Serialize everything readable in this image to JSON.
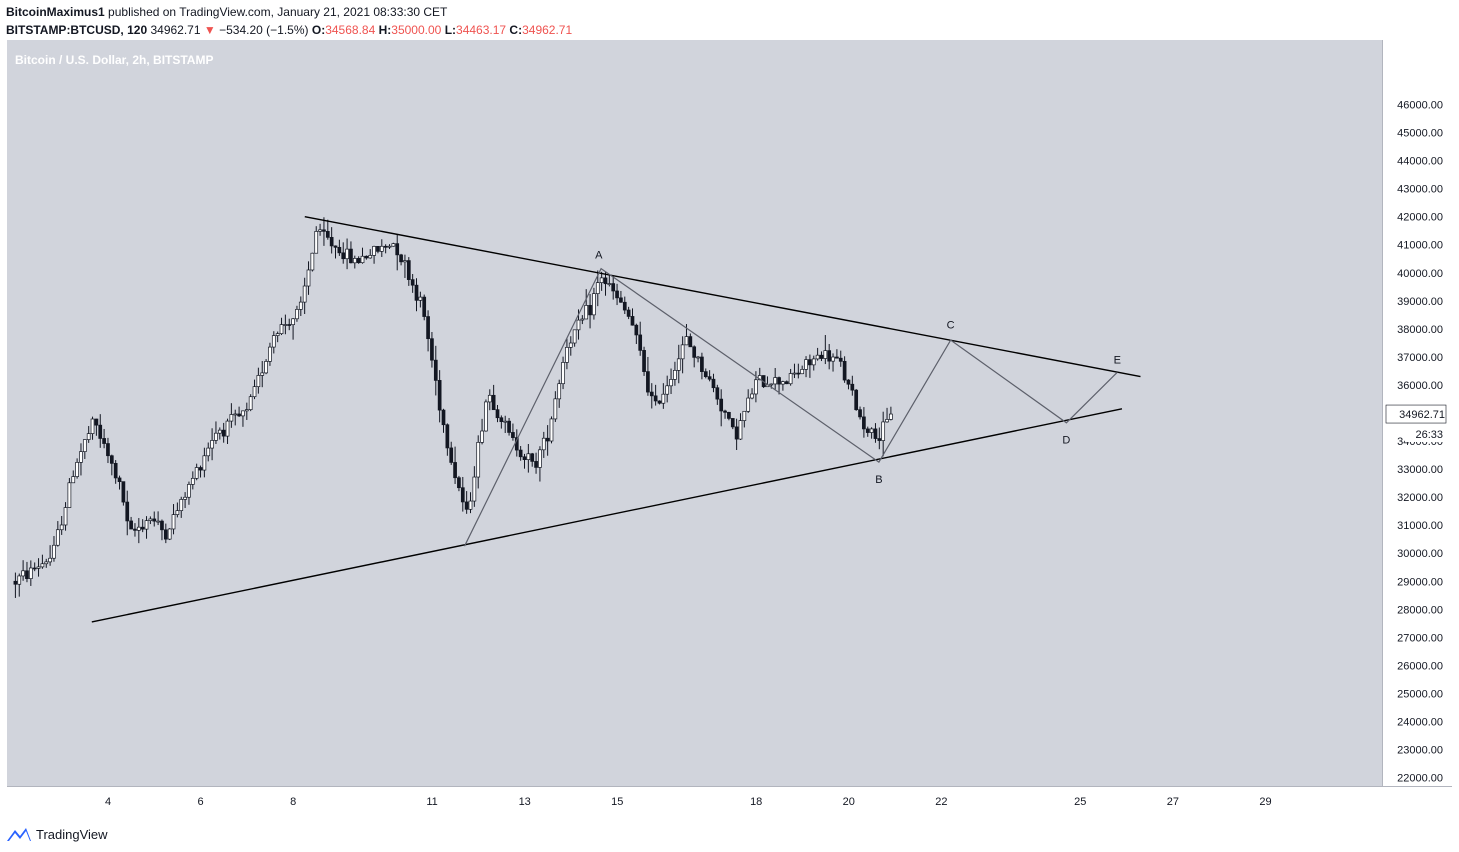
{
  "header": {
    "author": "BitcoinMaximus1",
    "published": "published on TradingView.com, January 21, 2021 08:33:30 CET"
  },
  "quote": {
    "symbol": "BITSTAMP:BTCUSD, 120",
    "last": "34962.71",
    "change": "−534.20 (−1.5%)",
    "o_label": "O:",
    "open": "34568.84",
    "h_label": "H:",
    "high": "35000.00",
    "l_label": "L:",
    "low": "34463.17",
    "c_label": "C:",
    "close": "34962.71"
  },
  "footer": {
    "brand": "TradingView"
  },
  "colors": {
    "plot_bg": "#d1d4dc",
    "axis_bg": "#ffffff",
    "up_candle": "#ffffff",
    "down_candle": "#131722",
    "line": "#000000",
    "wave": "#5d606b",
    "price_tag": "#ffffff",
    "red": "#ef5350"
  },
  "chart_data": {
    "type": "candlestick",
    "title": "Bitcoin / U.S. Dollar, 2h, BITSTAMP",
    "currency_label": "USD",
    "ylim": [
      21700,
      48300
    ],
    "y_ticks": [
      "46000.00",
      "45000.00",
      "44000.00",
      "43000.00",
      "42000.00",
      "41000.00",
      "40000.00",
      "39000.00",
      "38000.00",
      "37000.00",
      "36000.00",
      "35000.00",
      "34000.00",
      "33000.00",
      "32000.00",
      "31000.00",
      "30000.00",
      "29000.00",
      "28000.00",
      "27000.00",
      "26000.00",
      "25000.00",
      "24000.00",
      "23000.00",
      "22000.00"
    ],
    "x_ticks": [
      {
        "day": 4,
        "label": "4"
      },
      {
        "day": 6,
        "label": "6"
      },
      {
        "day": 8,
        "label": "8"
      },
      {
        "day": 11,
        "label": "11"
      },
      {
        "day": 13,
        "label": "13"
      },
      {
        "day": 15,
        "label": "15"
      },
      {
        "day": 18,
        "label": "18"
      },
      {
        "day": 20,
        "label": "20"
      },
      {
        "day": 22,
        "label": "22"
      },
      {
        "day": 25,
        "label": "25"
      },
      {
        "day": 27,
        "label": "27"
      },
      {
        "day": 29,
        "label": "29"
      }
    ],
    "last_price": "34962.71",
    "countdown": "26:33",
    "anchors": [
      {
        "day": 2.0,
        "price": 29000
      },
      {
        "day": 2.8,
        "price": 29900
      },
      {
        "day": 3.3,
        "price": 33200
      },
      {
        "day": 3.7,
        "price": 34700
      },
      {
        "day": 4.3,
        "price": 32200
      },
      {
        "day": 4.45,
        "price": 30600
      },
      {
        "day": 4.9,
        "price": 31300
      },
      {
        "day": 5.25,
        "price": 30700
      },
      {
        "day": 5.7,
        "price": 32200
      },
      {
        "day": 6.3,
        "price": 34300
      },
      {
        "day": 7.0,
        "price": 35000
      },
      {
        "day": 7.6,
        "price": 37900
      },
      {
        "day": 8.15,
        "price": 38600
      },
      {
        "day": 8.5,
        "price": 41500
      },
      {
        "day": 9.3,
        "price": 40400
      },
      {
        "day": 10.2,
        "price": 41100
      },
      {
        "day": 10.8,
        "price": 38700
      },
      {
        "day": 11.3,
        "price": 34100
      },
      {
        "day": 11.75,
        "price": 31300
      },
      {
        "day": 12.2,
        "price": 35800
      },
      {
        "day": 12.7,
        "price": 34100
      },
      {
        "day": 13.2,
        "price": 33100
      },
      {
        "day": 13.5,
        "price": 34300
      },
      {
        "day": 13.9,
        "price": 37400
      },
      {
        "day": 14.4,
        "price": 38700
      },
      {
        "day": 14.65,
        "price": 39900
      },
      {
        "day": 15.3,
        "price": 38300
      },
      {
        "day": 15.8,
        "price": 35100
      },
      {
        "day": 16.5,
        "price": 37600
      },
      {
        "day": 17.1,
        "price": 35800
      },
      {
        "day": 17.55,
        "price": 34200
      },
      {
        "day": 18.0,
        "price": 36100
      },
      {
        "day": 18.7,
        "price": 36200
      },
      {
        "day": 19.4,
        "price": 37100
      },
      {
        "day": 19.8,
        "price": 36800
      },
      {
        "day": 20.3,
        "price": 34600
      },
      {
        "day": 20.65,
        "price": 34100
      },
      {
        "day": 20.95,
        "price": 34962.71
      }
    ],
    "candle_step_days": 0.0833,
    "trendlines": [
      {
        "name": "resistance",
        "points": [
          {
            "day": 8.25,
            "price": 42000
          },
          {
            "day": 26.3,
            "price": 36300
          }
        ]
      },
      {
        "name": "support",
        "points": [
          {
            "day": 3.65,
            "price": 27550
          },
          {
            "day": 25.9,
            "price": 35150
          }
        ]
      }
    ],
    "wave_path": [
      {
        "day": 11.7,
        "price": 30250
      },
      {
        "day": 14.65,
        "price": 40150
      },
      {
        "day": 20.65,
        "price": 33250
      },
      {
        "day": 22.2,
        "price": 37600
      },
      {
        "day": 24.7,
        "price": 34650
      },
      {
        "day": 25.8,
        "price": 36450
      }
    ],
    "wave_labels": [
      {
        "text": "A",
        "day": 14.6,
        "price": 40650
      },
      {
        "text": "B",
        "day": 20.65,
        "price": 32650
      },
      {
        "text": "C",
        "day": 22.2,
        "price": 38150
      },
      {
        "text": "D",
        "day": 24.7,
        "price": 34050
      },
      {
        "text": "E",
        "day": 25.8,
        "price": 36900
      }
    ]
  }
}
